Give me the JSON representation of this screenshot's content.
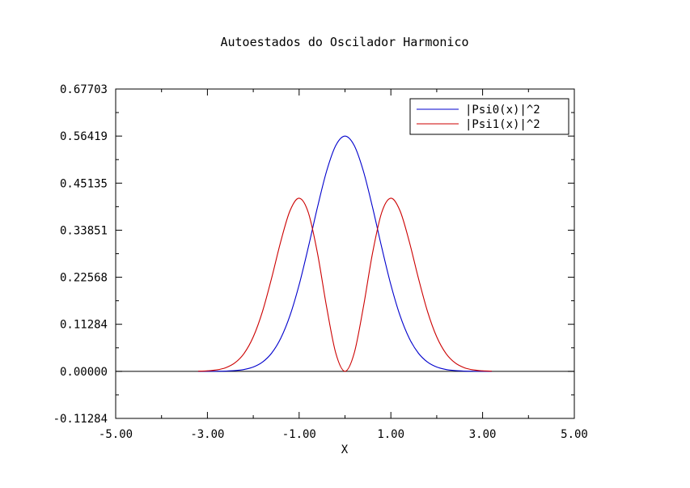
{
  "chart_data": {
    "type": "line",
    "title": "Autoestados do Oscilador Harmonico",
    "xlabel": "X",
    "ylabel": "",
    "xlim": [
      -5.0,
      5.0
    ],
    "ylim": [
      -0.11284,
      0.67703
    ],
    "x_ticks": [
      -5.0,
      -3.0,
      -1.0,
      1.0,
      3.0,
      5.0
    ],
    "x_tick_labels": [
      "-5.00",
      "-3.00",
      "-1.00",
      "1.00",
      "3.00",
      "5.00"
    ],
    "y_ticks": [
      -0.11284,
      0.0,
      0.11284,
      0.22568,
      0.33851,
      0.45135,
      0.56419,
      0.67703
    ],
    "y_tick_labels": [
      "-0.11284",
      "0.00000",
      "0.11284",
      "0.22568",
      "0.33851",
      "0.45135",
      "0.56419",
      "0.67703"
    ],
    "grid": false,
    "legend_position": "top-right",
    "zero_line": true,
    "series": [
      {
        "name": "|Psi0(x)|^2",
        "color": "#0000cc",
        "x": [
          -3.2,
          -3.0,
          -2.8,
          -2.6,
          -2.4,
          -2.2,
          -2.0,
          -1.8,
          -1.6,
          -1.4,
          -1.2,
          -1.0,
          -0.8,
          -0.6,
          -0.4,
          -0.2,
          0.0,
          0.2,
          0.4,
          0.6,
          0.8,
          1.0,
          1.2,
          1.4,
          1.6,
          1.8,
          2.0,
          2.2,
          2.4,
          2.6,
          2.8,
          3.0,
          3.2
        ],
        "y": [
          2e-05,
          7e-05,
          0.00022,
          0.00065,
          0.00177,
          0.00445,
          0.01033,
          0.02211,
          0.04366,
          0.07952,
          0.13365,
          0.20755,
          0.29752,
          0.39358,
          0.48049,
          0.54188,
          0.56419,
          0.54188,
          0.48049,
          0.39358,
          0.29752,
          0.20755,
          0.13365,
          0.07952,
          0.04366,
          0.02211,
          0.01033,
          0.00445,
          0.00177,
          0.00065,
          0.00022,
          7e-05,
          2e-05
        ]
      },
      {
        "name": "|Psi1(x)|^2",
        "color": "#cc0000",
        "x": [
          -3.2,
          -3.0,
          -2.8,
          -2.6,
          -2.4,
          -2.2,
          -2.0,
          -1.8,
          -1.6,
          -1.4,
          -1.2,
          -1.0,
          -0.8,
          -0.6,
          -0.4,
          -0.2,
          0.0,
          0.2,
          0.4,
          0.6,
          0.8,
          1.0,
          1.2,
          1.4,
          1.6,
          1.8,
          2.0,
          2.2,
          2.4,
          2.6,
          2.8,
          3.0,
          3.2
        ],
        "y": [
          0.00051,
          0.00126,
          0.00345,
          0.00879,
          0.02039,
          0.04308,
          0.08264,
          0.14325,
          0.22357,
          0.31173,
          0.38491,
          0.41511,
          0.38081,
          0.28338,
          0.15376,
          0.04335,
          0.0,
          0.04335,
          0.15376,
          0.28338,
          0.38081,
          0.41511,
          0.38491,
          0.31173,
          0.22357,
          0.14325,
          0.08264,
          0.04308,
          0.02039,
          0.00879,
          0.00345,
          0.00126,
          0.00051
        ]
      }
    ]
  }
}
